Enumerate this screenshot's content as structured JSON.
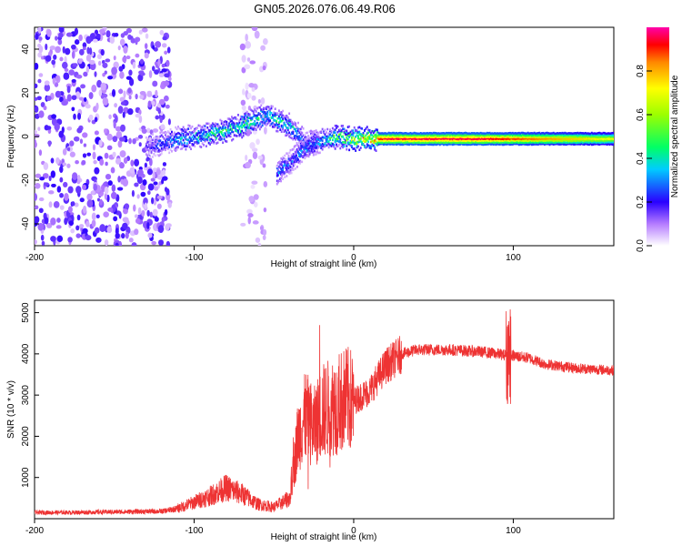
{
  "title": "GN05.2026.076.06.49.R06",
  "chart_data": [
    {
      "type": "heatmap",
      "name": "spectrogram",
      "xlabel": "Height of straight line (km)",
      "ylabel": "Frequency (Hz)",
      "xlim": [
        -200,
        163
      ],
      "ylim": [
        -50,
        50
      ],
      "xticks": [
        "-200",
        "-100",
        "0",
        "100"
      ],
      "yticks": [
        "-40",
        "-20",
        "0",
        "20",
        "40"
      ],
      "colorbar": {
        "label": "Normalized spectral amplitude",
        "range": [
          0.0,
          1.0
        ],
        "ticks": [
          "0.0",
          "0.2",
          "0.4",
          "0.6",
          "0.8"
        ]
      },
      "features": [
        {
          "region": "noise",
          "x_range": [
            -200,
            -115
          ],
          "freq_range": [
            -50,
            50
          ],
          "amplitude": 0.1
        },
        {
          "region": "noise",
          "x_range": [
            -70,
            -55
          ],
          "freq_range": [
            -50,
            50
          ],
          "amplitude": 0.05
        },
        {
          "region": "meteor_track",
          "x": [
            -130,
            -110,
            -90,
            -70,
            -55,
            -40,
            -30,
            -20,
            -10,
            0,
            20,
            80,
            163
          ],
          "freq": [
            -5,
            -1,
            1,
            5,
            10,
            5,
            -3,
            -2,
            0,
            -1,
            -1,
            -1,
            -1
          ],
          "amplitude": [
            0.2,
            0.35,
            0.45,
            0.5,
            0.45,
            0.4,
            0.3,
            0.4,
            0.5,
            0.7,
            0.95,
            0.95,
            0.7
          ]
        },
        {
          "region": "secondary_branch",
          "x": [
            -48,
            -40,
            -32,
            -22
          ],
          "freq": [
            -17,
            -12,
            -6,
            -2
          ],
          "amplitude": 0.3
        }
      ]
    },
    {
      "type": "line",
      "name": "snr",
      "color": "#ee3333",
      "xlabel": "Height of straight line (km)",
      "ylabel": "SNR (10 * v/v)",
      "xlim": [
        -200,
        163
      ],
      "ylim": [
        0,
        5300
      ],
      "xticks": [
        "-200",
        "-100",
        "0",
        "100"
      ],
      "yticks": [
        "1000",
        "2000",
        "3000",
        "4000",
        "5000"
      ],
      "x": [
        -200,
        -180,
        -160,
        -140,
        -120,
        -110,
        -100,
        -90,
        -80,
        -70,
        -60,
        -50,
        -40,
        -35,
        -30,
        -25,
        -20,
        -15,
        -10,
        -5,
        0,
        10,
        20,
        30,
        40,
        60,
        80,
        90,
        100,
        110,
        120,
        140,
        163
      ],
      "values": [
        150,
        150,
        160,
        170,
        180,
        250,
        400,
        550,
        750,
        600,
        350,
        280,
        500,
        2000,
        2500,
        2200,
        2600,
        2700,
        2800,
        2900,
        2850,
        3100,
        3700,
        4000,
        4100,
        4100,
        4050,
        4000,
        3950,
        3900,
        3750,
        3650,
        3600
      ]
    }
  ]
}
